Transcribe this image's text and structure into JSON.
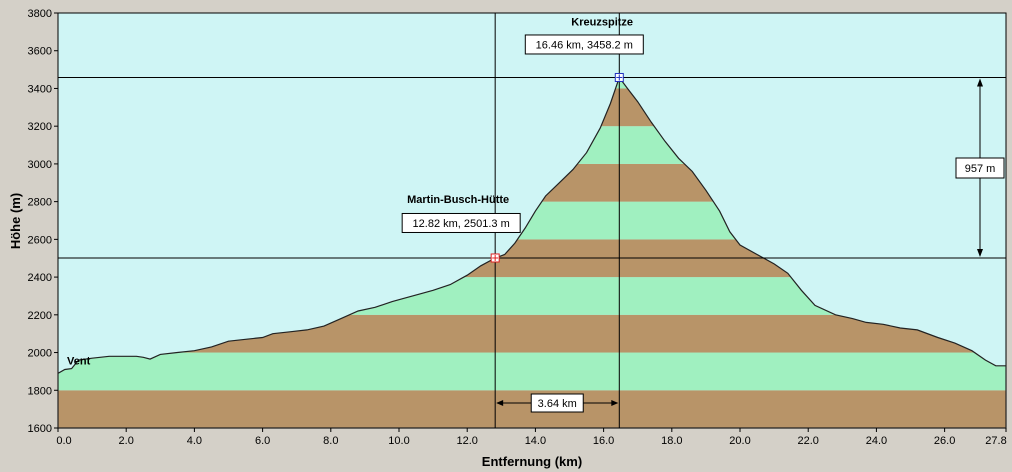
{
  "chart_data": {
    "type": "area",
    "xlabel": "Entfernung  (km)",
    "ylabel": "Höhe (m)",
    "xlim": [
      0,
      27.8
    ],
    "ylim": [
      1600,
      3800
    ],
    "x_ticks": [
      "0.0",
      "2.0",
      "4.0",
      "6.0",
      "8.0",
      "10.0",
      "12.0",
      "14.0",
      "16.0",
      "18.0",
      "20.0",
      "22.0",
      "24.0",
      "26.0",
      "27.8"
    ],
    "y_ticks": [
      "1600",
      "1800",
      "2000",
      "2200",
      "2400",
      "2600",
      "2800",
      "3000",
      "3200",
      "3400",
      "3600",
      "3800"
    ],
    "band_step_m": 200,
    "colors": {
      "sky": "#cff5f5",
      "band_brown": "#b89468",
      "band_green": "#a0f0c0",
      "outline": "#222222",
      "frame_bg": "#d4d0c8"
    },
    "profile": [
      [
        0.0,
        1890
      ],
      [
        0.2,
        1910
      ],
      [
        0.4,
        1915
      ],
      [
        0.6,
        1960
      ],
      [
        1.0,
        1970
      ],
      [
        1.5,
        1980
      ],
      [
        2.0,
        1980
      ],
      [
        2.3,
        1980
      ],
      [
        2.5,
        1975
      ],
      [
        2.7,
        1965
      ],
      [
        3.0,
        1990
      ],
      [
        3.5,
        2000
      ],
      [
        4.0,
        2010
      ],
      [
        4.5,
        2030
      ],
      [
        5.0,
        2060
      ],
      [
        5.5,
        2070
      ],
      [
        6.0,
        2080
      ],
      [
        6.3,
        2100
      ],
      [
        6.8,
        2110
      ],
      [
        7.3,
        2120
      ],
      [
        7.8,
        2140
      ],
      [
        8.3,
        2180
      ],
      [
        8.8,
        2220
      ],
      [
        9.3,
        2240
      ],
      [
        9.8,
        2270
      ],
      [
        10.2,
        2290
      ],
      [
        10.6,
        2310
      ],
      [
        11.0,
        2330
      ],
      [
        11.5,
        2360
      ],
      [
        12.0,
        2410
      ],
      [
        12.4,
        2460
      ],
      [
        12.82,
        2501.3
      ],
      [
        13.1,
        2520
      ],
      [
        13.4,
        2580
      ],
      [
        13.7,
        2660
      ],
      [
        14.0,
        2750
      ],
      [
        14.3,
        2830
      ],
      [
        14.7,
        2900
      ],
      [
        15.1,
        2970
      ],
      [
        15.5,
        3060
      ],
      [
        15.9,
        3190
      ],
      [
        16.2,
        3320
      ],
      [
        16.46,
        3458.2
      ],
      [
        16.7,
        3400
      ],
      [
        17.0,
        3330
      ],
      [
        17.4,
        3220
      ],
      [
        17.8,
        3120
      ],
      [
        18.2,
        3030
      ],
      [
        18.6,
        2960
      ],
      [
        19.0,
        2860
      ],
      [
        19.4,
        2750
      ],
      [
        19.7,
        2640
      ],
      [
        20.0,
        2570
      ],
      [
        20.5,
        2520
      ],
      [
        21.0,
        2470
      ],
      [
        21.4,
        2420
      ],
      [
        21.8,
        2330
      ],
      [
        22.2,
        2250
      ],
      [
        22.8,
        2200
      ],
      [
        23.3,
        2180
      ],
      [
        23.7,
        2160
      ],
      [
        24.2,
        2150
      ],
      [
        24.7,
        2130
      ],
      [
        25.2,
        2120
      ],
      [
        25.8,
        2080
      ],
      [
        26.3,
        2050
      ],
      [
        26.8,
        2010
      ],
      [
        27.2,
        1960
      ],
      [
        27.5,
        1930
      ],
      [
        27.8,
        1930
      ]
    ],
    "places": [
      {
        "name": "Vent",
        "x": 0.0,
        "y": 1890
      },
      {
        "name": "Martin-Busch-Hütte",
        "x": 12.82,
        "y": 2501.3
      },
      {
        "name": "Kreuzspitze",
        "x": 16.46,
        "y": 3458.2
      }
    ],
    "point_labels": [
      {
        "text": "12.82 km, 2501.3 m",
        "x": 12.82,
        "y": 2501.3
      },
      {
        "text": "16.46 km, 3458.2 m",
        "x": 16.46,
        "y": 3458.2
      }
    ],
    "distance_label": "3.64 km",
    "height_diff_label": "957 m"
  }
}
